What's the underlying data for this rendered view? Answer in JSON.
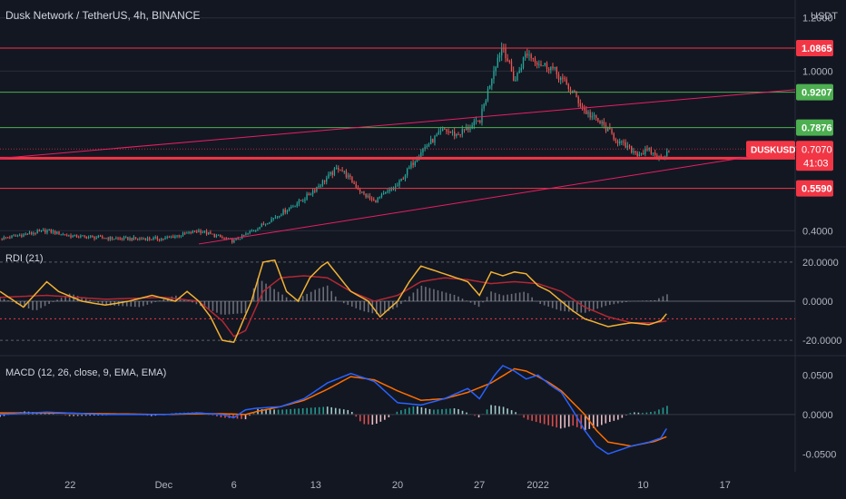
{
  "header": {
    "symbol_title": "Dusk Network / TetherUS, 4h, BINANCE",
    "currency": "USDT"
  },
  "colors": {
    "background": "#131722",
    "up": "#26a69a",
    "down": "#ef5350",
    "red_line": "#f23645",
    "green_line": "#4caf50",
    "trend_line": "#e91e63",
    "rdi_line": "#f2b233",
    "rdi_signal": "#b22833",
    "macd_line": "#2962ff",
    "signal_line": "#ff6d00",
    "hist_gray": "#b2b5be"
  },
  "chart_data": [
    {
      "type": "candlestick",
      "title": "Dusk Network / TetherUS, 4h, BINANCE",
      "ylabel": "USDT",
      "ylim": [
        0.36,
        1.24
      ],
      "y_ticks": [
        0.4,
        1.0,
        1.2
      ],
      "y_tick_labels": [
        "0.4000",
        "1.0000",
        "1.2000"
      ],
      "x_ticks": [
        "22",
        "Dec",
        "6",
        "13",
        "20",
        "27",
        "2022",
        "10",
        "17"
      ],
      "x_tick_days": [
        22,
        30,
        36,
        43,
        50,
        57,
        62,
        71,
        78
      ],
      "x_day_range": [
        16,
        84
      ],
      "price_path_days": [
        16,
        20,
        22,
        26,
        30,
        33,
        36,
        38,
        42,
        45,
        47,
        48,
        50,
        52,
        54,
        55,
        57,
        58.3,
        59,
        60,
        61,
        62.5,
        63,
        65,
        66,
        67.5,
        69,
        70.5,
        71.5,
        72.5,
        73.2
      ],
      "price_path_values": [
        0.37,
        0.4,
        0.38,
        0.37,
        0.37,
        0.4,
        0.36,
        0.41,
        0.52,
        0.64,
        0.54,
        0.51,
        0.57,
        0.7,
        0.78,
        0.76,
        0.81,
        1.02,
        1.1,
        0.96,
        1.07,
        1.02,
        1.02,
        0.92,
        0.85,
        0.8,
        0.73,
        0.69,
        0.7,
        0.67,
        0.707
      ],
      "horizontal_levels": [
        {
          "value": 1.0865,
          "label": "1.0865",
          "color": "red"
        },
        {
          "value": 0.9207,
          "label": "0.9207",
          "color": "green"
        },
        {
          "value": 0.7876,
          "label": "0.7876",
          "color": "green"
        },
        {
          "value": 0.6725,
          "label": "0.6725",
          "color": "red"
        },
        {
          "value": 0.559,
          "label": "0.5590",
          "color": "red"
        }
      ],
      "trend_lines": [
        {
          "from": [
            16,
            0.672
          ],
          "to": [
            84,
            0.93
          ]
        },
        {
          "from": [
            33,
            0.35
          ],
          "to": [
            84,
            0.705
          ]
        }
      ],
      "last_price": {
        "symbol": "DUSKUSDT",
        "value": "0.7070",
        "countdown": "41:03"
      }
    },
    {
      "type": "line",
      "title": "RDI (21)",
      "ylim": [
        -26,
        26
      ],
      "y_ticks": [
        20,
        0,
        -20
      ],
      "y_tick_labels": [
        "20.0000",
        "0.0000",
        "-20.0000"
      ],
      "reference_line": -9,
      "series": [
        {
          "key": "rdi",
          "days": [
            16,
            18,
            20,
            21,
            23,
            25,
            27,
            29,
            31,
            32,
            33,
            34,
            35,
            36,
            37.5,
            38.5,
            39.5,
            40.5,
            41.5,
            42.5,
            43.5,
            44,
            46,
            47.5,
            48.5,
            50,
            51,
            52,
            54,
            56,
            57,
            58,
            59,
            60,
            61,
            62,
            63,
            64,
            65,
            66,
            68,
            70,
            71.5,
            72.5,
            73.2
          ],
          "values": [
            5,
            -3,
            10,
            5,
            0,
            -2,
            0,
            3,
            0,
            5,
            0,
            -8,
            -20,
            -21,
            0,
            20,
            21,
            5,
            0,
            12,
            18,
            20,
            5,
            0,
            -8,
            0,
            10,
            18,
            14,
            10,
            3,
            15,
            13,
            15,
            14,
            8,
            5,
            0,
            -5,
            -9,
            -13,
            -11,
            -12,
            -10,
            -5
          ]
        },
        {
          "key": "rdi_signal",
          "days": [
            16,
            20,
            25,
            30,
            33,
            35,
            36,
            37,
            38.5,
            40,
            42,
            44,
            46,
            48,
            50,
            52,
            54,
            56,
            58,
            60,
            62,
            64,
            66,
            68,
            70,
            72,
            73.2
          ],
          "values": [
            2,
            3,
            1,
            2,
            0,
            -10,
            -18,
            -15,
            5,
            12,
            13,
            12,
            5,
            0,
            3,
            10,
            12,
            11,
            9,
            10,
            9,
            5,
            -3,
            -8,
            -11,
            -11,
            -10
          ]
        }
      ],
      "histogram_days": [
        16,
        19,
        22,
        25,
        28,
        31,
        33,
        35,
        37,
        38,
        39,
        41,
        43,
        44,
        45,
        47,
        48.5,
        50,
        52,
        55,
        57,
        58,
        59,
        61,
        62,
        64,
        66,
        68,
        70,
        72,
        73.2
      ],
      "histogram_values": [
        2,
        -5,
        4,
        -2,
        -3,
        3,
        -2,
        -7,
        -6,
        12,
        8,
        0,
        6,
        8,
        0,
        -5,
        -7,
        -3,
        8,
        3,
        -3,
        5,
        3,
        5,
        -1,
        -5,
        -6,
        -2,
        0,
        0.5,
        4
      ]
    },
    {
      "type": "line",
      "title": "MACD (12, 26, close, 9, EMA, EMA)",
      "ylim": [
        -0.068,
        0.07
      ],
      "y_ticks": [
        0.05,
        0,
        -0.05
      ],
      "y_tick_labels": [
        "0.0500",
        "0.0000",
        "-0.0500"
      ],
      "series": [
        {
          "key": "macd",
          "days": [
            16,
            20,
            25,
            30,
            33,
            35,
            36,
            37,
            38,
            40,
            42,
            44,
            46,
            48,
            50,
            52,
            54,
            56,
            57,
            58.3,
            59,
            60,
            61,
            62,
            63,
            64,
            65,
            66,
            67,
            68,
            69,
            70,
            71.5,
            72.5,
            73.2
          ],
          "values": [
            0,
            0.003,
            0,
            0,
            0.002,
            0,
            -0.004,
            0.006,
            0.008,
            0.01,
            0.02,
            0.04,
            0.052,
            0.042,
            0.015,
            0.012,
            0.02,
            0.033,
            0.02,
            0.05,
            0.062,
            0.055,
            0.045,
            0.05,
            0.038,
            0.028,
            0.005,
            -0.02,
            -0.04,
            -0.05,
            -0.045,
            -0.04,
            -0.035,
            -0.03,
            -0.013
          ]
        },
        {
          "key": "signal",
          "days": [
            16,
            20,
            25,
            30,
            33,
            35,
            37,
            38,
            40,
            42,
            44,
            46,
            48,
            50,
            52,
            54,
            56,
            58,
            60,
            61,
            62,
            63,
            64,
            65,
            66,
            67,
            68,
            70,
            72,
            73.2
          ],
          "values": [
            0.002,
            0.002,
            0.001,
            0,
            0.001,
            0.001,
            0,
            0.004,
            0.01,
            0.018,
            0.032,
            0.048,
            0.044,
            0.03,
            0.018,
            0.02,
            0.028,
            0.04,
            0.058,
            0.055,
            0.048,
            0.04,
            0.03,
            0.015,
            0,
            -0.02,
            -0.035,
            -0.04,
            -0.034,
            -0.027
          ]
        }
      ],
      "histogram_days": [
        16,
        18,
        20,
        22,
        25,
        27,
        29,
        31,
        33,
        35,
        37,
        38,
        40,
        42,
        44,
        46,
        47,
        48,
        49,
        50,
        51.5,
        53,
        55,
        57,
        58,
        59,
        60,
        61,
        62,
        63,
        64,
        65,
        66,
        67,
        68,
        69,
        70,
        71,
        72,
        73.2
      ],
      "histogram_values": [
        -0.003,
        0.004,
        0.002,
        -0.002,
        -0.001,
        0.001,
        -0.002,
        0.002,
        0.003,
        -0.004,
        -0.006,
        0.007,
        0.006,
        0.008,
        0.01,
        0.005,
        -0.012,
        -0.013,
        -0.006,
        0.004,
        0.011,
        0.006,
        0.008,
        -0.004,
        0.012,
        0.01,
        0.004,
        -0.006,
        -0.01,
        -0.014,
        -0.018,
        -0.014,
        -0.02,
        -0.016,
        -0.01,
        -0.006,
        0.003,
        0.002,
        0.004,
        0.012
      ]
    }
  ]
}
